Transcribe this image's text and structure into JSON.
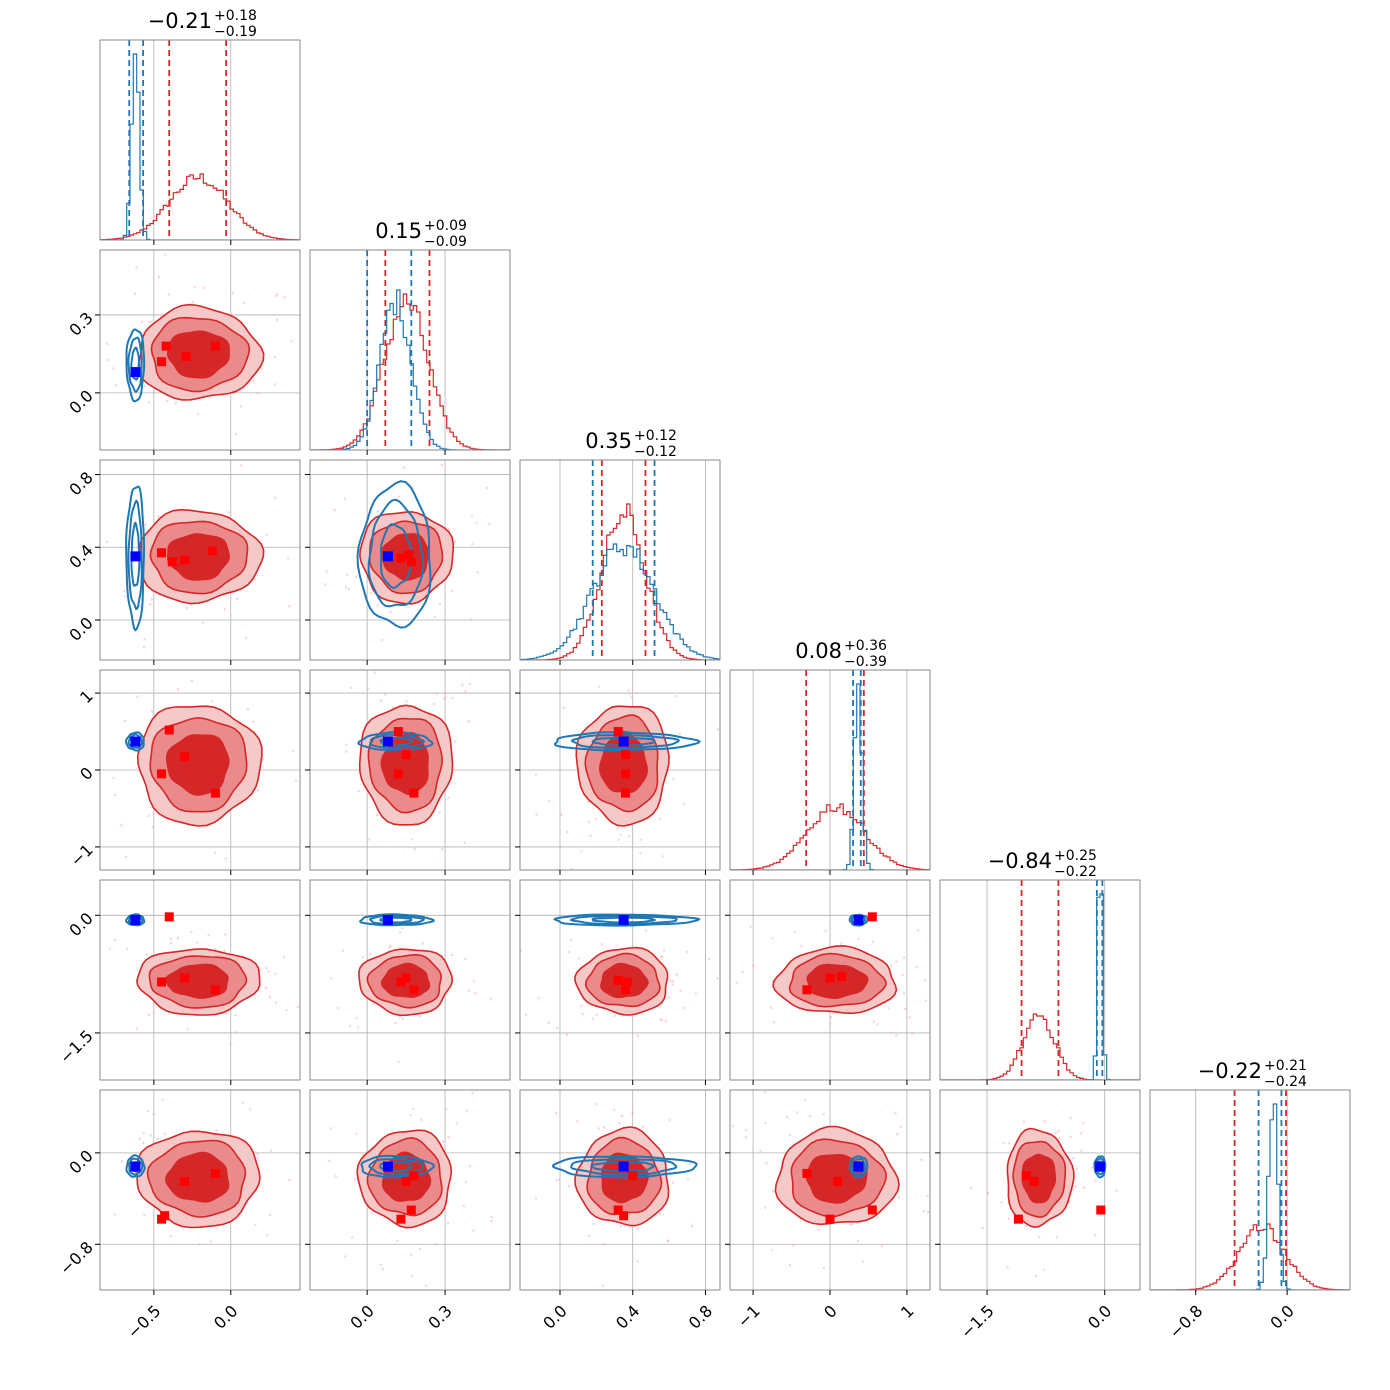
{
  "chart_data": {
    "type": "corner",
    "grid": true,
    "colors": {
      "red": "#d62728",
      "red_mid": "#eb8a8a",
      "red_light": "#f6c9c9",
      "blue": "#1f77b4",
      "blue_marker": "#0000ff",
      "red_marker": "#ff0000",
      "grid": "#b0b0b0"
    },
    "parameters": [
      {
        "title_value": "−0.21",
        "title_plus": "+0.18",
        "title_minus": "−0.19",
        "range": [
          -0.85,
          0.45
        ],
        "ticks": [
          -0.5,
          0.0
        ],
        "tick_labels": [
          "−0.5",
          "0.0"
        ],
        "red": {
          "mean": -0.21,
          "sd": 0.19,
          "q16": -0.4,
          "q84": -0.03
        },
        "blue": {
          "mean": -0.62,
          "sd": 0.025,
          "q16": -0.66,
          "q84": -0.57
        },
        "truth": -0.62
      },
      {
        "title_value": "0.15",
        "title_plus": "+0.09",
        "title_minus": "−0.09",
        "range": [
          -0.22,
          0.55
        ],
        "ticks": [
          0.0,
          0.3
        ],
        "tick_labels": [
          "0.0",
          "0.3"
        ],
        "red": {
          "mean": 0.15,
          "sd": 0.085,
          "q16": 0.07,
          "q84": 0.24
        },
        "blue": {
          "mean": 0.11,
          "sd": 0.06,
          "q16": 0.0,
          "q84": 0.17
        },
        "truth": 0.08
      },
      {
        "title_value": "0.35",
        "title_plus": "+0.12",
        "title_minus": "−0.12",
        "range": [
          -0.22,
          0.88
        ],
        "ticks": [
          0.0,
          0.4,
          0.8
        ],
        "tick_labels": [
          "0.0",
          "0.4",
          "0.8"
        ],
        "red": {
          "mean": 0.35,
          "sd": 0.12,
          "q16": 0.23,
          "q84": 0.47
        },
        "blue": {
          "mean": 0.35,
          "sd": 0.17,
          "q16": 0.18,
          "q84": 0.52
        },
        "truth": 0.35
      },
      {
        "title_value": "0.08",
        "title_plus": "+0.36",
        "title_minus": "−0.39",
        "range": [
          -1.3,
          1.3
        ],
        "ticks": [
          -1,
          0,
          1
        ],
        "tick_labels": [
          "−1",
          "0",
          "1"
        ],
        "red": {
          "mean": 0.08,
          "sd": 0.37,
          "q16": -0.31,
          "q84": 0.44
        },
        "blue": {
          "mean": 0.37,
          "sd": 0.05,
          "q16": 0.3,
          "q84": 0.4
        },
        "truth": 0.37
      },
      {
        "title_value": "−0.84",
        "title_plus": "+0.25",
        "title_minus": "−0.22",
        "range": [
          -2.1,
          0.45
        ],
        "ticks": [
          -1.5,
          0.0
        ],
        "tick_labels": [
          "−1.5",
          "0.0"
        ],
        "red": {
          "mean": -0.84,
          "sd": 0.2,
          "q16": -1.06,
          "q84": -0.59
        },
        "blue": {
          "mean": -0.06,
          "sd": 0.03,
          "q16": -0.1,
          "q84": -0.03
        },
        "truth": -0.06
      },
      {
        "title_value": "−0.22",
        "title_plus": "+0.21",
        "title_minus": "−0.24",
        "range": [
          -1.2,
          0.55
        ],
        "ticks": [
          -0.8,
          0.0
        ],
        "tick_labels": [
          "−0.8",
          "0.0"
        ],
        "red": {
          "mean": -0.22,
          "sd": 0.2,
          "q16": -0.46,
          "q84": -0.01
        },
        "blue": {
          "mean": -0.12,
          "sd": 0.04,
          "q16": -0.25,
          "q84": -0.05
        },
        "truth": -0.12
      }
    ],
    "red_markers": {
      "1_0": [
        [
          -0.42,
          0.18
        ],
        [
          -0.29,
          0.14
        ],
        [
          -0.1,
          0.18
        ],
        [
          -0.45,
          0.12
        ]
      ],
      "2_0": [
        [
          -0.45,
          0.37
        ],
        [
          -0.38,
          0.32
        ],
        [
          -0.3,
          0.33
        ],
        [
          -0.12,
          0.38
        ]
      ],
      "2_1": [
        [
          0.13,
          0.34
        ],
        [
          0.17,
          0.32
        ],
        [
          0.16,
          0.36
        ]
      ],
      "3_0": [
        [
          -0.4,
          0.52
        ],
        [
          -0.45,
          -0.05
        ],
        [
          -0.3,
          0.17
        ],
        [
          -0.1,
          -0.3
        ]
      ],
      "3_1": [
        [
          0.12,
          0.5
        ],
        [
          0.12,
          -0.05
        ],
        [
          0.15,
          0.2
        ],
        [
          0.18,
          -0.3
        ]
      ],
      "3_2": [
        [
          0.32,
          0.5
        ],
        [
          0.36,
          -0.05
        ],
        [
          0.36,
          0.2
        ],
        [
          0.36,
          -0.3
        ]
      ],
      "4_0": [
        [
          -0.4,
          -0.02
        ],
        [
          -0.45,
          -0.85
        ],
        [
          -0.3,
          -0.8
        ],
        [
          -0.1,
          -0.95
        ]
      ],
      "4_1": [
        [
          0.13,
          -0.85
        ],
        [
          0.15,
          -0.8
        ],
        [
          0.18,
          -0.95
        ]
      ],
      "4_2": [
        [
          0.32,
          -0.83
        ],
        [
          0.37,
          -0.85
        ],
        [
          0.36,
          -0.95
        ]
      ],
      "4_3": [
        [
          -0.3,
          -0.95
        ],
        [
          0.0,
          -0.8
        ],
        [
          0.15,
          -0.78
        ],
        [
          0.55,
          -0.02
        ]
      ],
      "5_0": [
        [
          -0.45,
          -0.58
        ],
        [
          -0.43,
          -0.55
        ],
        [
          -0.3,
          -0.25
        ],
        [
          -0.1,
          -0.18
        ]
      ],
      "5_1": [
        [
          0.15,
          -0.25
        ],
        [
          0.18,
          -0.2
        ],
        [
          0.13,
          -0.58
        ],
        [
          0.17,
          -0.5
        ]
      ],
      "5_2": [
        [
          0.32,
          -0.5
        ],
        [
          0.35,
          -0.55
        ],
        [
          0.4,
          -0.2
        ]
      ],
      "5_3": [
        [
          -0.3,
          -0.18
        ],
        [
          0.0,
          -0.58
        ],
        [
          0.1,
          -0.25
        ],
        [
          0.55,
          -0.5
        ]
      ],
      "5_4": [
        [
          -1.1,
          -0.58
        ],
        [
          -0.9,
          -0.25
        ],
        [
          -1.0,
          -0.2
        ],
        [
          -0.05,
          -0.5
        ]
      ]
    }
  }
}
